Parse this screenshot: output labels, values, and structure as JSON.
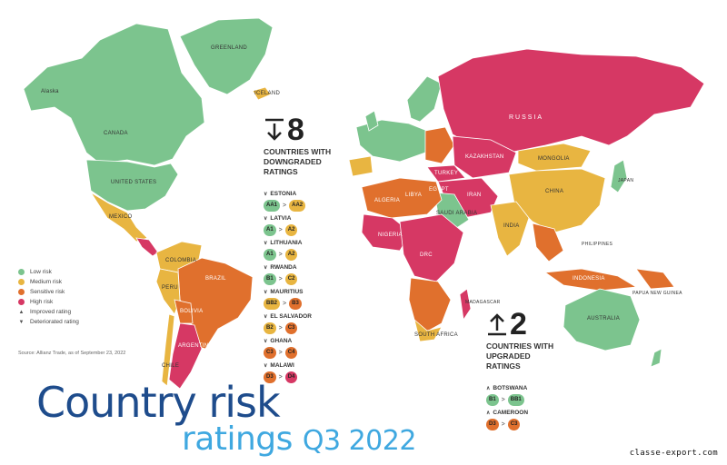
{
  "title": {
    "line1": "Country risk",
    "line2": "ratings",
    "quarter": "Q3 2022"
  },
  "watermark": "classe-export.com",
  "colors": {
    "low": "#7cc48e",
    "medium": "#e8b541",
    "sensitive": "#e0702d",
    "high": "#d63864",
    "ocean": "#ffffff"
  },
  "legend": [
    {
      "label": "Low risk",
      "color": "#7cc48e"
    },
    {
      "label": "Medium risk",
      "color": "#e8b541"
    },
    {
      "label": "Sensitive risk",
      "color": "#e0702d"
    },
    {
      "label": "High risk",
      "color": "#d63864"
    },
    {
      "label": "Improved rating",
      "icon": "improved-icon"
    },
    {
      "label": "Deteriorated rating",
      "icon": "deteriorated-icon"
    }
  ],
  "source": "Source: Allianz Trade, as of September 23, 2022",
  "map_labels": {
    "greenland": "GREENLAND",
    "alaska": "Alaska",
    "canada": "CANADA",
    "us": "UNITED STATES",
    "mexico": "MEXICO",
    "colombia": "COLOMBIA",
    "brazil": "BRAZIL",
    "peru": "PERU",
    "bolivia": "BOLIVIA",
    "argentina": "ARGENTINA",
    "chile": "CHILE",
    "russia": "RUSSIA",
    "kazakhstan": "KAZAKHSTAN",
    "mongolia": "MONGOLIA",
    "china": "CHINA",
    "india": "INDIA",
    "iran": "IRAN",
    "turkey": "TURKEY",
    "saudi": "SAUDI ARABIA",
    "libya": "LIBYA",
    "egypt": "EGYPT",
    "algeria": "ALGERIA",
    "nigeria": "NIGERIA",
    "drc": "DRC",
    "south_africa": "SOUTH AFRICA",
    "madagascar": "MADAGASCAR",
    "australia": "AUSTRALIA",
    "indonesia": "INDONESIA",
    "japan": "JAPAN",
    "philippines": "PHILIPPINES",
    "iceland": "ICELAND",
    "png": "PAPUA NEW GUINEA"
  },
  "downgraded": {
    "count": "8",
    "title": [
      "COUNTRIES WITH",
      "DOWNGRADED",
      "RATINGS"
    ],
    "items": [
      {
        "name": "ESTONIA",
        "from": "AA1",
        "to": "AA2",
        "from_color": "#7cc48e",
        "to_color": "#e8b541"
      },
      {
        "name": "LATVIA",
        "from": "A1",
        "to": "A2",
        "from_color": "#7cc48e",
        "to_color": "#e8b541"
      },
      {
        "name": "LITHUANIA",
        "from": "A1",
        "to": "A2",
        "from_color": "#7cc48e",
        "to_color": "#e8b541"
      },
      {
        "name": "RWANDA",
        "from": "B1",
        "to": "C2",
        "from_color": "#7cc48e",
        "to_color": "#e8b541"
      },
      {
        "name": "MAURITIUS",
        "from": "BB2",
        "to": "B3",
        "from_color": "#e8b541",
        "to_color": "#e0702d"
      },
      {
        "name": "EL SALVADOR",
        "from": "B2",
        "to": "C3",
        "from_color": "#e8b541",
        "to_color": "#e0702d"
      },
      {
        "name": "GHANA",
        "from": "C3",
        "to": "C4",
        "from_color": "#e0702d",
        "to_color": "#e0702d"
      },
      {
        "name": "MALAWI",
        "from": "D3",
        "to": "D4",
        "from_color": "#e0702d",
        "to_color": "#d63864"
      }
    ]
  },
  "upgraded": {
    "count": "2",
    "title": [
      "COUNTRIES WITH",
      "UPGRADED",
      "RATINGS"
    ],
    "items": [
      {
        "name": "BOTSWANA",
        "from": "B1",
        "to": "BB1",
        "from_color": "#7cc48e",
        "to_color": "#7cc48e"
      },
      {
        "name": "CAMEROON",
        "from": "D3",
        "to": "C3",
        "from_color": "#e0702d",
        "to_color": "#e0702d"
      }
    ]
  }
}
